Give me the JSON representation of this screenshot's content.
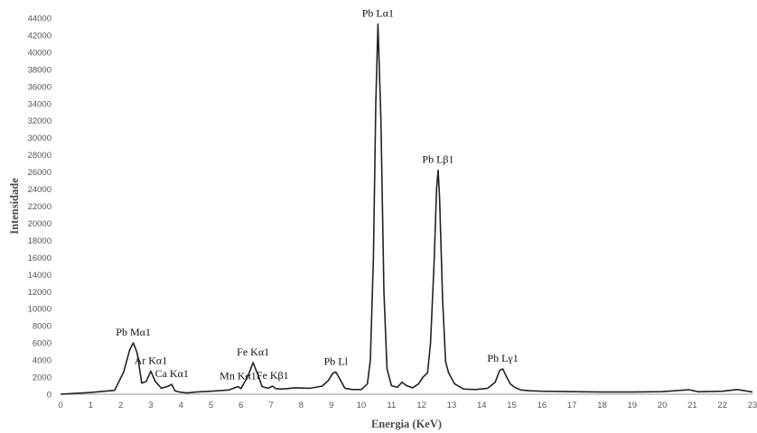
{
  "chart_data": {
    "type": "line",
    "title": "",
    "xlabel": "Energia (KeV)",
    "ylabel": "Intensidade",
    "xlim": [
      0,
      23
    ],
    "ylim": [
      0,
      44000
    ],
    "x_ticks": [
      "0",
      "1",
      "2",
      "3",
      "4",
      "5",
      "6",
      "7",
      "8",
      "9",
      "10",
      "11",
      "12",
      "13",
      "14",
      "15",
      "16",
      "17",
      "18",
      "19",
      "20",
      "21",
      "22",
      "23"
    ],
    "y_ticks": [
      "0",
      "2000",
      "4000",
      "6000",
      "8000",
      "10000",
      "12000",
      "14000",
      "16000",
      "18000",
      "20000",
      "22000",
      "24000",
      "26000",
      "28000",
      "30000",
      "32000",
      "34000",
      "36000",
      "38000",
      "40000",
      "42000",
      "44000"
    ],
    "grid": false,
    "colors": {
      "line": "#222222",
      "axis": "#9a9a9a"
    },
    "series": [
      {
        "x": [
          0,
          1.0,
          1.3,
          1.8,
          2.1,
          2.3,
          2.42,
          2.55,
          2.7,
          2.85,
          3.0,
          3.15,
          3.35,
          3.55,
          3.7,
          3.8,
          3.95,
          4.2,
          4.5,
          5.0,
          5.6,
          5.9,
          6.0,
          6.15,
          6.25,
          6.4,
          6.55,
          6.7,
          6.9,
          7.05,
          7.15,
          7.35,
          7.8,
          8.3,
          8.7,
          8.9,
          9.05,
          9.15,
          9.28,
          9.45,
          9.7,
          10.0,
          10.2,
          10.3,
          10.4,
          10.48,
          10.55,
          10.65,
          10.75,
          10.85,
          11.0,
          11.2,
          11.35,
          11.5,
          11.7,
          11.9,
          12.05,
          12.2,
          12.3,
          12.42,
          12.5,
          12.55,
          12.6,
          12.7,
          12.8,
          12.9,
          13.1,
          13.4,
          13.8,
          14.2,
          14.45,
          14.6,
          14.7,
          14.8,
          14.95,
          15.1,
          15.3,
          15.6,
          16.0,
          17.0,
          18.0,
          19.0,
          20.0,
          20.6,
          20.9,
          21.2,
          22.0,
          22.5,
          23.0
        ],
        "values": [
          0,
          200,
          300,
          450,
          2600,
          5200,
          6000,
          4800,
          1300,
          1500,
          2700,
          1500,
          700,
          900,
          1150,
          400,
          250,
          150,
          250,
          350,
          500,
          900,
          650,
          1600,
          2300,
          3700,
          2400,
          900,
          700,
          950,
          650,
          600,
          750,
          700,
          950,
          1600,
          2450,
          2600,
          1800,
          700,
          550,
          550,
          1200,
          4000,
          16000,
          34000,
          43300,
          32000,
          12000,
          3000,
          1000,
          800,
          1400,
          1000,
          750,
          1200,
          2000,
          2500,
          6000,
          15500,
          24000,
          26200,
          23000,
          11000,
          3800,
          2500,
          1200,
          600,
          550,
          700,
          1400,
          2800,
          2950,
          2200,
          1200,
          800,
          500,
          400,
          350,
          300,
          250,
          250,
          300,
          450,
          520,
          280,
          350,
          550,
          250
        ]
      }
    ],
    "annotations": [
      {
        "text": "Pb Mα1",
        "x": 2.42,
        "y": 6000
      },
      {
        "text": "Ar Kα1",
        "x": 3.0,
        "y": 2700
      },
      {
        "text": "Ca Kα1",
        "x": 3.7,
        "y": 1150
      },
      {
        "text": "Mn Kα1",
        "x": 5.9,
        "y": 900
      },
      {
        "text": "Fe Kα1",
        "x": 6.4,
        "y": 3700
      },
      {
        "text": "Fe Kβ1",
        "x": 7.05,
        "y": 950
      },
      {
        "text": "Pb Ll",
        "x": 9.15,
        "y": 2600
      },
      {
        "text": "Pb Lα1",
        "x": 10.55,
        "y": 43300
      },
      {
        "text": "Pb Lβ1",
        "x": 12.55,
        "y": 26200
      },
      {
        "text": "Pb Lγ1",
        "x": 14.7,
        "y": 2950
      }
    ]
  }
}
